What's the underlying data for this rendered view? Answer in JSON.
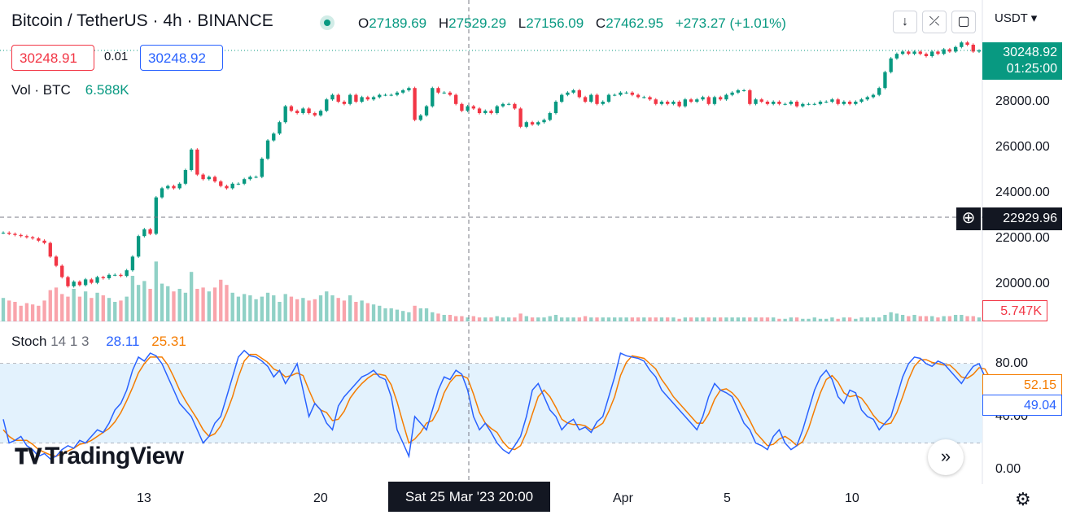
{
  "header": {
    "symbol": "Bitcoin",
    "quote": "TetherUS",
    "interval": "4h",
    "exchange": "BINANCE",
    "title": "Bitcoin / TetherUS · 4h · BINANCE",
    "ohlc": {
      "o_label": "O",
      "o": "27189.69",
      "h_label": "H",
      "h": "27529.29",
      "l_label": "L",
      "l": "27156.09",
      "c_label": "C",
      "c": "27462.95",
      "change": "+273.27 (+1.01%)"
    },
    "sell_price": "30248.91",
    "spread": "0.01",
    "buy_price": "30248.92"
  },
  "toolbar": {
    "download_icon": "arrow-down-icon",
    "collapse_icon": "collapse-icon",
    "fullscreen_icon": "fullscreen-icon",
    "currency": "USDT ▾"
  },
  "volume_legend": {
    "label": "Vol · BTC",
    "value": "6.588K"
  },
  "stoch_legend": {
    "label": "Stoch",
    "params": "14 1 3",
    "k": "28.11",
    "d": "25.31"
  },
  "price_axis": {
    "labels": [
      "28000.00",
      "26000.00",
      "24000.00",
      "22000.00",
      "20000.00"
    ],
    "last_price": "30248.92",
    "countdown": "01:25:00",
    "crosshair_price": "22929.96",
    "volume_last": "5.747K"
  },
  "stoch_axis": {
    "labels": [
      "80.00",
      "40.00",
      "0.00"
    ],
    "k_last": "49.04",
    "d_last": "52.15"
  },
  "time_axis": {
    "labels": [
      "13",
      "20",
      "Apr",
      "5",
      "10"
    ],
    "crosshair_date": "Sat 25 Mar '23   20:00"
  },
  "logo": "TradingView",
  "colors": {
    "up": "#089981",
    "down": "#f23645",
    "k_line": "#2962ff",
    "d_line": "#f57c00",
    "band": "#e3f2fd"
  },
  "chart_data": {
    "type": "candlestick",
    "closes": [
      22250,
      22200,
      22150,
      22100,
      22050,
      22000,
      21900,
      21800,
      21200,
      20800,
      20300,
      19900,
      20100,
      19950,
      20200,
      20050,
      20300,
      20250,
      20400,
      20400,
      20350,
      20600,
      21200,
      22100,
      22400,
      22200,
      23800,
      24200,
      24300,
      24200,
      24400,
      25000,
      25900,
      24800,
      24600,
      24700,
      24500,
      24300,
      24200,
      24400,
      24400,
      24600,
      24700,
      24700,
      25500,
      26300,
      26600,
      27100,
      27800,
      27600,
      27500,
      27700,
      27500,
      27400,
      27600,
      28100,
      28300,
      28000,
      27900,
      28300,
      28000,
      28200,
      28100,
      28200,
      28300,
      28300,
      28300,
      28400,
      28500,
      28600,
      27200,
      27400,
      27800,
      28600,
      28400,
      28400,
      28300,
      27900,
      27600,
      27800,
      27700,
      27500,
      27600,
      27500,
      27800,
      27900,
      27900,
      27700,
      26900,
      27100,
      27000,
      27100,
      27200,
      27500,
      28000,
      28300,
      28400,
      28500,
      28200,
      28000,
      28300,
      27900,
      28000,
      28300,
      28300,
      28400,
      28400,
      28300,
      28200,
      28200,
      28100,
      27900,
      28000,
      27900,
      28000,
      27800,
      28100,
      28000,
      28100,
      28200,
      27900,
      28200,
      28100,
      28300,
      28400,
      28500,
      28500,
      27900,
      28100,
      28000,
      27900,
      28000,
      27900,
      27900,
      28000,
      27800,
      27900,
      27900,
      27900,
      28000,
      28000,
      28100,
      27900,
      28000,
      27900,
      28000,
      28100,
      28200,
      28300,
      28600,
      29300,
      29900,
      30100,
      30200,
      30100,
      30200,
      30100,
      30000,
      30200,
      30100,
      30300,
      30200,
      30400,
      30600,
      30500,
      30200,
      30250
    ],
    "volumes": [
      1.8,
      1.6,
      1.5,
      1.2,
      1.4,
      1.3,
      1.2,
      1.6,
      2.4,
      2.6,
      2.1,
      1.9,
      2.5,
      1.9,
      2.3,
      1.8,
      2.2,
      2.0,
      1.8,
      1.5,
      1.6,
      1.9,
      3.5,
      2.8,
      3.1,
      2.5,
      4.6,
      2.9,
      2.7,
      2.3,
      2.5,
      2.2,
      3.8,
      2.5,
      2.6,
      2.3,
      2.6,
      3.2,
      2.8,
      2.2,
      1.9,
      2.1,
      2.0,
      1.7,
      1.9,
      2.2,
      2.0,
      1.5,
      2.1,
      1.9,
      1.7,
      1.8,
      1.6,
      1.7,
      2.0,
      2.3,
      2.0,
      1.8,
      1.6,
      2.0,
      1.5,
      1.6,
      1.4,
      1.3,
      1.2,
      1.0,
      1.0,
      0.9,
      0.8,
      0.7,
      1.2,
      1.0,
      1.0,
      0.7,
      0.6,
      0.5,
      0.5,
      0.4,
      0.4,
      0.3,
      0.4,
      0.3,
      0.3,
      0.3,
      0.4,
      0.3,
      0.3,
      0.3,
      0.6,
      0.4,
      0.3,
      0.3,
      0.3,
      0.4,
      0.5,
      0.3,
      0.3,
      0.3,
      0.3,
      0.4,
      0.3,
      0.3,
      0.3,
      0.3,
      0.3,
      0.3,
      0.3,
      0.3,
      0.3,
      0.3,
      0.3,
      0.3,
      0.3,
      0.3,
      0.3,
      0.2,
      0.3,
      0.3,
      0.3,
      0.3,
      0.3,
      0.3,
      0.3,
      0.3,
      0.3,
      0.3,
      0.3,
      0.3,
      0.3,
      0.3,
      0.3,
      0.3,
      0.2,
      0.2,
      0.3,
      0.3,
      0.2,
      0.2,
      0.3,
      0.2,
      0.2,
      0.3,
      0.2,
      0.3,
      0.3,
      0.2,
      0.3,
      0.3,
      0.3,
      0.3,
      0.5,
      0.7,
      0.6,
      0.5,
      0.4,
      0.5,
      0.4,
      0.4,
      0.4,
      0.3,
      0.4,
      0.4,
      0.5,
      0.5,
      0.4,
      0.4,
      0.3
    ],
    "stoch_k": [
      38,
      20,
      22,
      25,
      18,
      15,
      10,
      12,
      8,
      10,
      15,
      18,
      16,
      22,
      20,
      25,
      30,
      28,
      35,
      45,
      50,
      60,
      75,
      85,
      82,
      88,
      86,
      80,
      70,
      60,
      50,
      45,
      40,
      30,
      20,
      25,
      35,
      40,
      55,
      70,
      85,
      90,
      86,
      85,
      82,
      78,
      70,
      75,
      65,
      72,
      80,
      60,
      40,
      50,
      45,
      35,
      30,
      48,
      55,
      60,
      65,
      70,
      72,
      75,
      70,
      68,
      55,
      30,
      20,
      10,
      40,
      35,
      30,
      45,
      60,
      70,
      68,
      75,
      72,
      60,
      40,
      30,
      35,
      28,
      20,
      15,
      12,
      18,
      25,
      40,
      60,
      65,
      55,
      45,
      40,
      30,
      35,
      38,
      30,
      32,
      28,
      36,
      40,
      55,
      70,
      88,
      86,
      85,
      84,
      82,
      75,
      70,
      60,
      55,
      50,
      45,
      40,
      35,
      30,
      40,
      55,
      65,
      60,
      58,
      55,
      45,
      35,
      30,
      20,
      18,
      15,
      25,
      30,
      20,
      15,
      18,
      30,
      45,
      60,
      70,
      75,
      68,
      55,
      50,
      60,
      58,
      45,
      40,
      38,
      30,
      35,
      40,
      55,
      70,
      80,
      85,
      84,
      80,
      78,
      82,
      80,
      75,
      70,
      65,
      72,
      78,
      80,
      70,
      55,
      45,
      49
    ],
    "stoch_d": [
      30,
      25,
      22,
      22,
      22,
      19,
      15,
      13,
      11,
      10,
      12,
      14,
      16,
      19,
      20,
      22,
      25,
      28,
      31,
      36,
      43,
      52,
      62,
      73,
      80,
      85,
      85,
      85,
      79,
      70,
      60,
      52,
      45,
      38,
      30,
      25,
      27,
      33,
      43,
      55,
      70,
      82,
      87,
      87,
      84,
      81,
      76,
      74,
      70,
      71,
      73,
      71,
      60,
      50,
      45,
      43,
      37,
      38,
      44,
      54,
      60,
      65,
      69,
      72,
      72,
      71,
      64,
      51,
      35,
      20,
      23,
      28,
      35,
      37,
      45,
      58,
      66,
      71,
      71,
      69,
      57,
      43,
      35,
      31,
      28,
      21,
      16,
      15,
      18,
      28,
      42,
      55,
      60,
      55,
      47,
      38,
      35,
      34,
      34,
      33,
      30,
      32,
      35,
      44,
      55,
      71,
      81,
      86,
      85,
      84,
      80,
      76,
      68,
      62,
      55,
      50,
      45,
      40,
      35,
      35,
      42,
      53,
      60,
      61,
      58,
      53,
      45,
      37,
      28,
      23,
      18,
      19,
      23,
      25,
      22,
      18,
      21,
      31,
      45,
      58,
      68,
      71,
      66,
      58,
      55,
      56,
      54,
      48,
      41,
      36,
      34,
      35,
      43,
      55,
      68,
      78,
      83,
      83,
      81,
      80,
      79,
      79,
      75,
      70,
      69,
      72,
      77,
      76,
      68,
      57,
      52
    ]
  }
}
